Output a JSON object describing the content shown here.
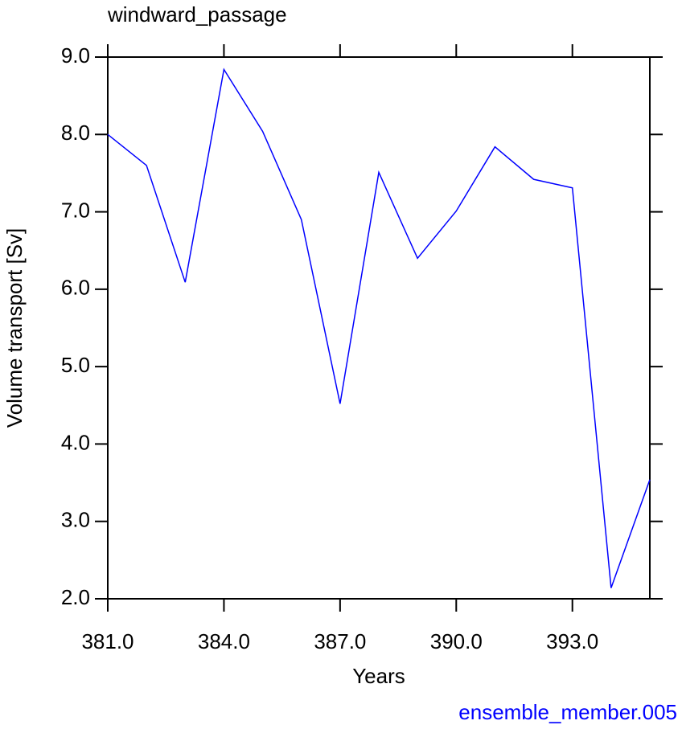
{
  "chart_data": {
    "type": "line",
    "title": "windward_passage",
    "annotation": "ensemble_member.005",
    "xlabel": "Years",
    "ylabel": "Volume transport [Sv]",
    "x": [
      381,
      382,
      383,
      384,
      385,
      386,
      387,
      388,
      389,
      390,
      391,
      392,
      393,
      394,
      395
    ],
    "series": [
      {
        "color": "#0000ff",
        "values": [
          8.0,
          7.6,
          6.09,
          8.84,
          8.04,
          6.9,
          4.52,
          7.51,
          6.4,
          7.01,
          7.84,
          7.42,
          7.31,
          2.14,
          3.54
        ]
      }
    ],
    "xlim": [
      381,
      395
    ],
    "xticks": [
      {
        "value": 381,
        "label": "381.0"
      },
      {
        "value": 384,
        "label": "384.0"
      },
      {
        "value": 387,
        "label": "387.0"
      },
      {
        "value": 390,
        "label": "390.0"
      },
      {
        "value": 393,
        "label": "393.0"
      }
    ],
    "ylim": [
      2,
      9
    ],
    "yticks": [
      {
        "value": 2,
        "label": "2.0"
      },
      {
        "value": 3,
        "label": "3.0"
      },
      {
        "value": 4,
        "label": "4.0"
      },
      {
        "value": 5,
        "label": "5.0"
      },
      {
        "value": 6,
        "label": "6.0"
      },
      {
        "value": 7,
        "label": "7.0"
      },
      {
        "value": 8,
        "label": "8.0"
      },
      {
        "value": 9,
        "label": "9.0"
      }
    ],
    "grid": false
  }
}
